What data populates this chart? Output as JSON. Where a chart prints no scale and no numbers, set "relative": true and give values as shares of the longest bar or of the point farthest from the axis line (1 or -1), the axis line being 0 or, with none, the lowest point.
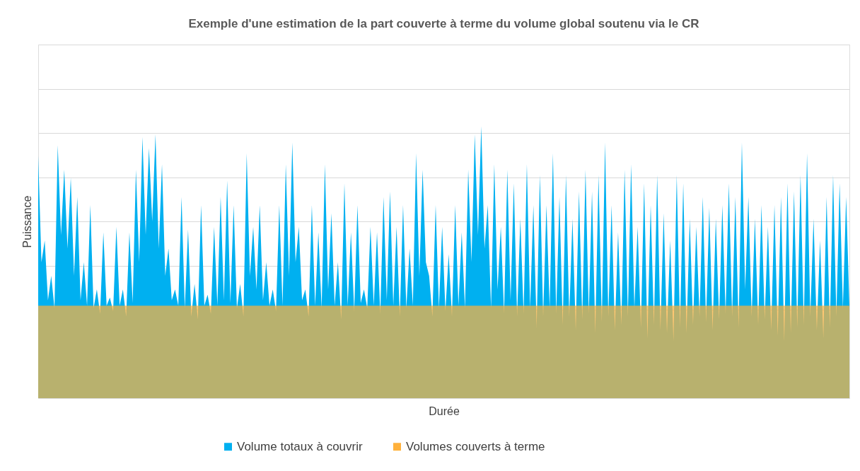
{
  "chart_data": {
    "type": "area",
    "title": "Exemple d'une estimation de la part couverte à terme du volume global soutenu via le CR",
    "xlabel": "Durée",
    "ylabel": "Puissance",
    "relative": true,
    "grid": "y",
    "legend": "bottom",
    "categories": [
      null,
      null,
      null,
      null,
      null,
      null,
      null,
      null,
      null,
      null,
      null,
      null,
      null,
      null,
      null,
      null,
      null,
      null,
      null,
      null,
      null,
      null,
      null,
      null,
      null,
      null,
      null,
      null,
      null,
      null,
      null,
      null,
      null,
      null,
      null,
      null,
      null,
      null,
      null,
      null,
      null,
      null,
      null,
      null,
      null,
      null,
      null,
      null,
      null,
      null,
      null,
      null,
      null,
      null,
      null,
      null,
      null,
      null,
      null,
      null,
      null,
      null,
      null,
      null,
      null,
      null,
      null,
      null,
      null,
      null,
      null,
      null,
      null,
      null,
      null,
      null,
      null,
      null,
      null,
      null,
      null,
      null,
      null,
      null,
      null,
      null,
      null,
      null,
      null,
      null,
      null,
      null,
      null,
      null,
      null,
      null,
      null,
      null,
      null,
      null,
      null,
      null,
      null,
      null,
      null,
      null,
      null,
      null,
      null,
      null,
      null,
      null,
      null,
      null,
      null,
      null,
      null,
      null,
      null,
      null,
      null,
      null,
      null,
      null,
      null,
      null,
      null,
      null,
      null,
      null,
      null,
      null,
      null,
      null,
      null,
      null,
      null,
      null,
      null,
      null,
      null,
      null,
      null,
      null,
      null,
      null,
      null,
      null,
      null,
      null,
      null,
      null,
      null,
      null,
      null,
      null,
      null,
      null,
      null,
      null,
      null,
      null,
      null,
      null,
      null,
      null,
      null,
      null,
      null,
      null,
      null,
      null,
      null,
      null,
      null,
      null,
      null,
      null,
      null,
      null,
      null,
      null,
      null,
      null,
      null,
      null,
      null,
      null,
      null,
      null,
      null,
      null,
      null,
      null,
      null,
      null,
      null,
      null,
      null,
      null,
      null,
      null,
      null,
      null,
      null,
      null,
      null,
      null,
      null,
      null,
      null,
      null,
      null,
      null,
      null,
      null,
      null,
      null,
      null,
      null,
      null,
      null,
      null,
      null,
      null,
      null,
      null,
      null,
      null,
      null,
      null,
      null,
      null,
      null,
      null,
      null,
      null,
      null,
      null,
      null,
      null,
      null,
      null,
      null,
      null,
      null,
      null,
      null,
      null,
      null
    ],
    "series": [
      {
        "name": "Volume totaux à couvrir",
        "color": "#00b0f0",
        "values": [
          0.89,
          0.5,
          0.58,
          0.36,
          0.45,
          0.33,
          0.93,
          0.6,
          0.84,
          0.55,
          0.81,
          0.45,
          0.74,
          0.36,
          0.5,
          0.34,
          0.71,
          0.33,
          0.4,
          0.31,
          0.61,
          0.34,
          0.37,
          0.32,
          0.63,
          0.34,
          0.4,
          0.3,
          0.61,
          0.35,
          0.84,
          0.5,
          0.96,
          0.6,
          0.92,
          0.65,
          0.97,
          0.55,
          0.86,
          0.45,
          0.55,
          0.36,
          0.4,
          0.34,
          0.74,
          0.33,
          0.62,
          0.3,
          0.42,
          0.29,
          0.71,
          0.34,
          0.38,
          0.31,
          0.63,
          0.34,
          0.74,
          0.36,
          0.8,
          0.35,
          0.71,
          0.33,
          0.42,
          0.3,
          0.9,
          0.45,
          0.63,
          0.4,
          0.71,
          0.36,
          0.5,
          0.34,
          0.4,
          0.32,
          0.71,
          0.34,
          0.86,
          0.45,
          0.94,
          0.5,
          0.63,
          0.36,
          0.4,
          0.3,
          0.71,
          0.34,
          0.61,
          0.33,
          0.86,
          0.4,
          0.68,
          0.34,
          0.5,
          0.29,
          0.79,
          0.34,
          0.61,
          0.32,
          0.71,
          0.35,
          0.4,
          0.33,
          0.63,
          0.34,
          0.61,
          0.31,
          0.74,
          0.36,
          0.76,
          0.34,
          0.63,
          0.3,
          0.71,
          0.33,
          0.55,
          0.34,
          0.9,
          0.45,
          0.84,
          0.5,
          0.45,
          0.3,
          0.71,
          0.33,
          0.63,
          0.32,
          0.53,
          0.3,
          0.71,
          0.34,
          0.61,
          0.33,
          0.84,
          0.5,
          0.97,
          0.6,
          1.0,
          0.55,
          0.71,
          0.33,
          0.86,
          0.4,
          0.63,
          0.31,
          0.84,
          0.36,
          0.79,
          0.3,
          0.66,
          0.31,
          0.86,
          0.33,
          0.71,
          0.26,
          0.82,
          0.3,
          0.71,
          0.33,
          0.9,
          0.31,
          0.74,
          0.27,
          0.82,
          0.3,
          0.66,
          0.25,
          0.76,
          0.29,
          0.84,
          0.31,
          0.76,
          0.24,
          0.82,
          0.28,
          0.94,
          0.3,
          0.71,
          0.25,
          0.61,
          0.27,
          0.84,
          0.3,
          0.86,
          0.33,
          0.63,
          0.26,
          0.79,
          0.22,
          0.71,
          0.27,
          0.82,
          0.25,
          0.68,
          0.24,
          0.58,
          0.21,
          0.82,
          0.26,
          0.79,
          0.24,
          0.66,
          0.27,
          0.63,
          0.3,
          0.74,
          0.28,
          0.7,
          0.25,
          0.66,
          0.29,
          0.71,
          0.31,
          0.79,
          0.3,
          0.74,
          0.26,
          0.94,
          0.4,
          0.74,
          0.3,
          0.66,
          0.27,
          0.71,
          0.29,
          0.63,
          0.25,
          0.71,
          0.23,
          0.74,
          0.21,
          0.79,
          0.24,
          0.76,
          0.26,
          0.82,
          0.27,
          0.9,
          0.3,
          0.66,
          0.25,
          0.58,
          0.22,
          0.74,
          0.26,
          0.82,
          0.3,
          0.79,
          0.33,
          0.74,
          0.34
        ]
      },
      {
        "name": "Volumes couverts à terme",
        "color": "#ffb13c",
        "values": [
          0.34,
          0.34,
          0.34,
          0.34,
          0.34,
          0.34,
          0.34,
          0.34,
          0.34,
          0.34,
          0.34,
          0.34,
          0.34,
          0.34,
          0.34,
          0.34,
          0.34,
          0.34,
          0.34,
          0.34,
          0.34,
          0.34,
          0.34,
          0.34,
          0.34,
          0.34,
          0.34,
          0.34,
          0.34,
          0.34,
          0.34,
          0.34,
          0.34,
          0.34,
          0.34,
          0.34,
          0.34,
          0.34,
          0.34,
          0.34,
          0.34,
          0.34,
          0.34,
          0.34,
          0.34,
          0.34,
          0.34,
          0.34,
          0.34,
          0.34,
          0.34,
          0.34,
          0.34,
          0.34,
          0.34,
          0.34,
          0.34,
          0.34,
          0.34,
          0.34,
          0.34,
          0.34,
          0.34,
          0.34,
          0.34,
          0.34,
          0.34,
          0.34,
          0.34,
          0.34,
          0.34,
          0.34,
          0.34,
          0.34,
          0.34,
          0.34,
          0.34,
          0.34,
          0.34,
          0.34,
          0.34,
          0.34,
          0.34,
          0.34,
          0.34,
          0.34,
          0.34,
          0.34,
          0.34,
          0.34,
          0.34,
          0.34,
          0.34,
          0.34,
          0.34,
          0.34,
          0.34,
          0.34,
          0.34,
          0.34,
          0.34,
          0.34,
          0.34,
          0.34,
          0.34,
          0.34,
          0.34,
          0.34,
          0.34,
          0.34,
          0.34,
          0.34,
          0.34,
          0.34,
          0.34,
          0.34,
          0.34,
          0.34,
          0.34,
          0.34,
          0.34,
          0.34,
          0.34,
          0.34,
          0.34,
          0.34,
          0.34,
          0.34,
          0.34,
          0.34,
          0.34,
          0.34,
          0.34,
          0.34,
          0.34,
          0.34,
          0.34,
          0.34,
          0.34,
          0.34,
          0.34,
          0.34,
          0.34,
          0.34,
          0.34,
          0.34,
          0.34,
          0.34,
          0.34,
          0.34,
          0.34,
          0.34,
          0.34,
          0.34,
          0.34,
          0.34,
          0.34,
          0.34,
          0.34,
          0.34,
          0.34,
          0.34,
          0.34,
          0.34,
          0.34,
          0.34,
          0.34,
          0.34,
          0.34,
          0.34,
          0.34,
          0.34,
          0.34,
          0.34,
          0.34,
          0.34,
          0.34,
          0.34,
          0.34,
          0.34,
          0.34,
          0.34,
          0.34,
          0.34,
          0.34,
          0.34,
          0.34,
          0.34,
          0.34,
          0.34,
          0.34,
          0.34,
          0.34,
          0.34,
          0.34,
          0.34,
          0.34,
          0.34,
          0.34,
          0.34,
          0.34,
          0.34,
          0.34,
          0.34,
          0.34,
          0.34,
          0.34,
          0.34,
          0.34,
          0.34,
          0.34,
          0.34,
          0.34,
          0.34,
          0.34,
          0.34,
          0.34,
          0.34,
          0.34,
          0.34,
          0.34,
          0.34,
          0.34,
          0.34,
          0.34,
          0.34,
          0.34,
          0.34,
          0.34,
          0.34,
          0.34,
          0.34,
          0.34,
          0.34,
          0.34,
          0.34,
          0.34,
          0.34,
          0.34,
          0.34,
          0.34,
          0.34,
          0.34,
          0.34,
          0.34,
          0.34,
          0.34,
          0.34,
          0.34,
          0.34
        ]
      }
    ]
  }
}
